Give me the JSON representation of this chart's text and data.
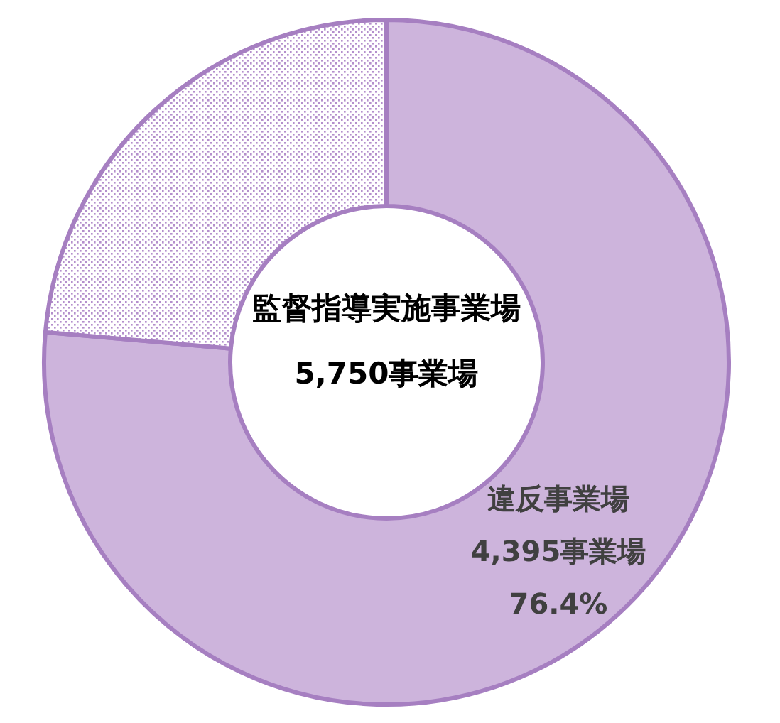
{
  "chart_data": {
    "type": "donut",
    "categories": [
      "違反事業場",
      null
    ],
    "values": [
      76.4,
      23.6
    ],
    "colors": [
      "#cdb4dc",
      "#b48fcc"
    ],
    "value_labels": [
      "76.4%",
      null
    ],
    "annotations": [
      "監督指導実施事業場",
      "5,750事業場",
      "4,395事業場"
    ],
    "legend": false
  }
}
